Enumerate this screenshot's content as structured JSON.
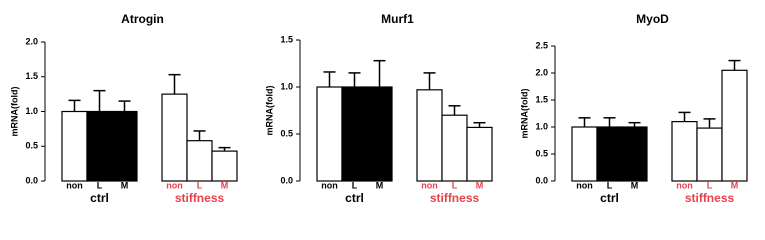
{
  "chart_data": [
    {
      "type": "bar",
      "title": "Atrogin",
      "y_label": "mRNA(fold)",
      "ylim": [
        0,
        2
      ],
      "yticks": [
        {
          "value": 0,
          "label": "0.0"
        },
        {
          "value": 0.5,
          "label": "0.5"
        },
        {
          "value": 1,
          "label": "1.0"
        },
        {
          "value": 1.5,
          "label": "1.5"
        },
        {
          "value": 2,
          "label": "2.0"
        }
      ],
      "groups": [
        {
          "name": "ctrl",
          "label_color": "#000000",
          "categories": [
            "non",
            "L",
            "M"
          ],
          "values": [
            1.0,
            1.0,
            1.0
          ],
          "errors": [
            0.16,
            0.3,
            0.15
          ],
          "colors": [
            "#ffffff",
            "#000000",
            "#000000"
          ]
        },
        {
          "name": "stiffness",
          "label_color": "#e8424d",
          "categories": [
            "non",
            "L",
            "M"
          ],
          "values": [
            1.25,
            0.58,
            0.43
          ],
          "errors": [
            0.28,
            0.14,
            0.05
          ],
          "colors": [
            "#ffffff",
            "#ffffff",
            "#ffffff"
          ]
        }
      ]
    },
    {
      "type": "bar",
      "title": "Murf1",
      "y_label": "mRNA(fold)",
      "ylim": [
        0,
        1.5
      ],
      "yticks": [
        {
          "value": 0,
          "label": "0.0"
        },
        {
          "value": 0.5,
          "label": "0.5"
        },
        {
          "value": 1,
          "label": "1.0"
        },
        {
          "value": 1.5,
          "label": "1.5"
        }
      ],
      "groups": [
        {
          "name": "ctrl",
          "label_color": "#000000",
          "categories": [
            "non",
            "L",
            "M"
          ],
          "values": [
            1.0,
            1.0,
            1.0
          ],
          "errors": [
            0.16,
            0.15,
            0.28
          ],
          "colors": [
            "#ffffff",
            "#000000",
            "#000000"
          ]
        },
        {
          "name": "stiffness",
          "label_color": "#e8424d",
          "categories": [
            "non",
            "L",
            "M"
          ],
          "values": [
            0.97,
            0.7,
            0.57
          ],
          "errors": [
            0.18,
            0.1,
            0.05
          ],
          "colors": [
            "#ffffff",
            "#ffffff",
            "#ffffff"
          ]
        }
      ]
    },
    {
      "type": "bar",
      "title": "MyoD",
      "y_label": "mRNA(fold)",
      "ylim": [
        0,
        2.5
      ],
      "yticks": [
        {
          "value": 0,
          "label": "0.0"
        },
        {
          "value": 0.5,
          "label": "0.5"
        },
        {
          "value": 1,
          "label": "1.0"
        },
        {
          "value": 1.5,
          "label": "1.5"
        },
        {
          "value": 2,
          "label": "2.0"
        },
        {
          "value": 2.5,
          "label": "2.5"
        }
      ],
      "groups": [
        {
          "name": "ctrl",
          "label_color": "#000000",
          "categories": [
            "non",
            "L",
            "M"
          ],
          "values": [
            1.0,
            1.0,
            1.0
          ],
          "errors": [
            0.17,
            0.17,
            0.08
          ],
          "colors": [
            "#ffffff",
            "#000000",
            "#000000"
          ]
        },
        {
          "name": "stiffness",
          "label_color": "#e8424d",
          "categories": [
            "non",
            "L",
            "M"
          ],
          "values": [
            1.1,
            0.98,
            2.05
          ],
          "errors": [
            0.17,
            0.17,
            0.18
          ],
          "colors": [
            "#ffffff",
            "#ffffff",
            "#ffffff"
          ]
        }
      ]
    }
  ]
}
